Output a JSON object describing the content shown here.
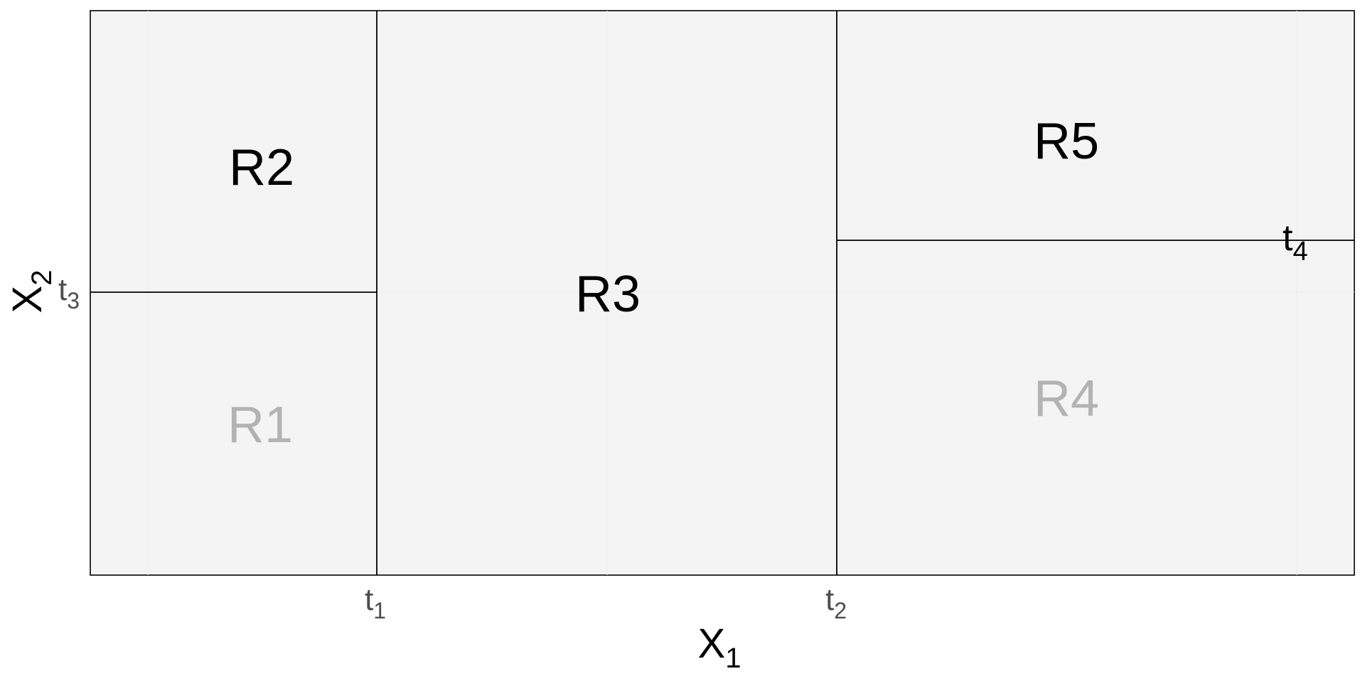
{
  "diagram": {
    "axes": {
      "x_label": {
        "main": "X",
        "sub": "1"
      },
      "y_label": {
        "main": "X",
        "sub": "2"
      }
    },
    "thresholds": [
      {
        "id": "t1",
        "main": "t",
        "sub": "1"
      },
      {
        "id": "t2",
        "main": "t",
        "sub": "2"
      },
      {
        "id": "t3",
        "main": "t",
        "sub": "3"
      },
      {
        "id": "t4",
        "main": "t",
        "sub": "4"
      }
    ],
    "regions": [
      {
        "id": "R1",
        "label": "R1",
        "color": "#b3b3b3"
      },
      {
        "id": "R2",
        "label": "R2",
        "color": "#000000"
      },
      {
        "id": "R3",
        "label": "R3",
        "color": "#000000"
      },
      {
        "id": "R4",
        "label": "R4",
        "color": "#b3b3b3"
      },
      {
        "id": "R5",
        "label": "R5",
        "color": "#000000"
      }
    ],
    "colors": {
      "panel_background": "#f4f4f4",
      "split_line": "#000000",
      "axis_tick_text": "#4d4d4d",
      "axis_title_text": "#000000"
    }
  }
}
